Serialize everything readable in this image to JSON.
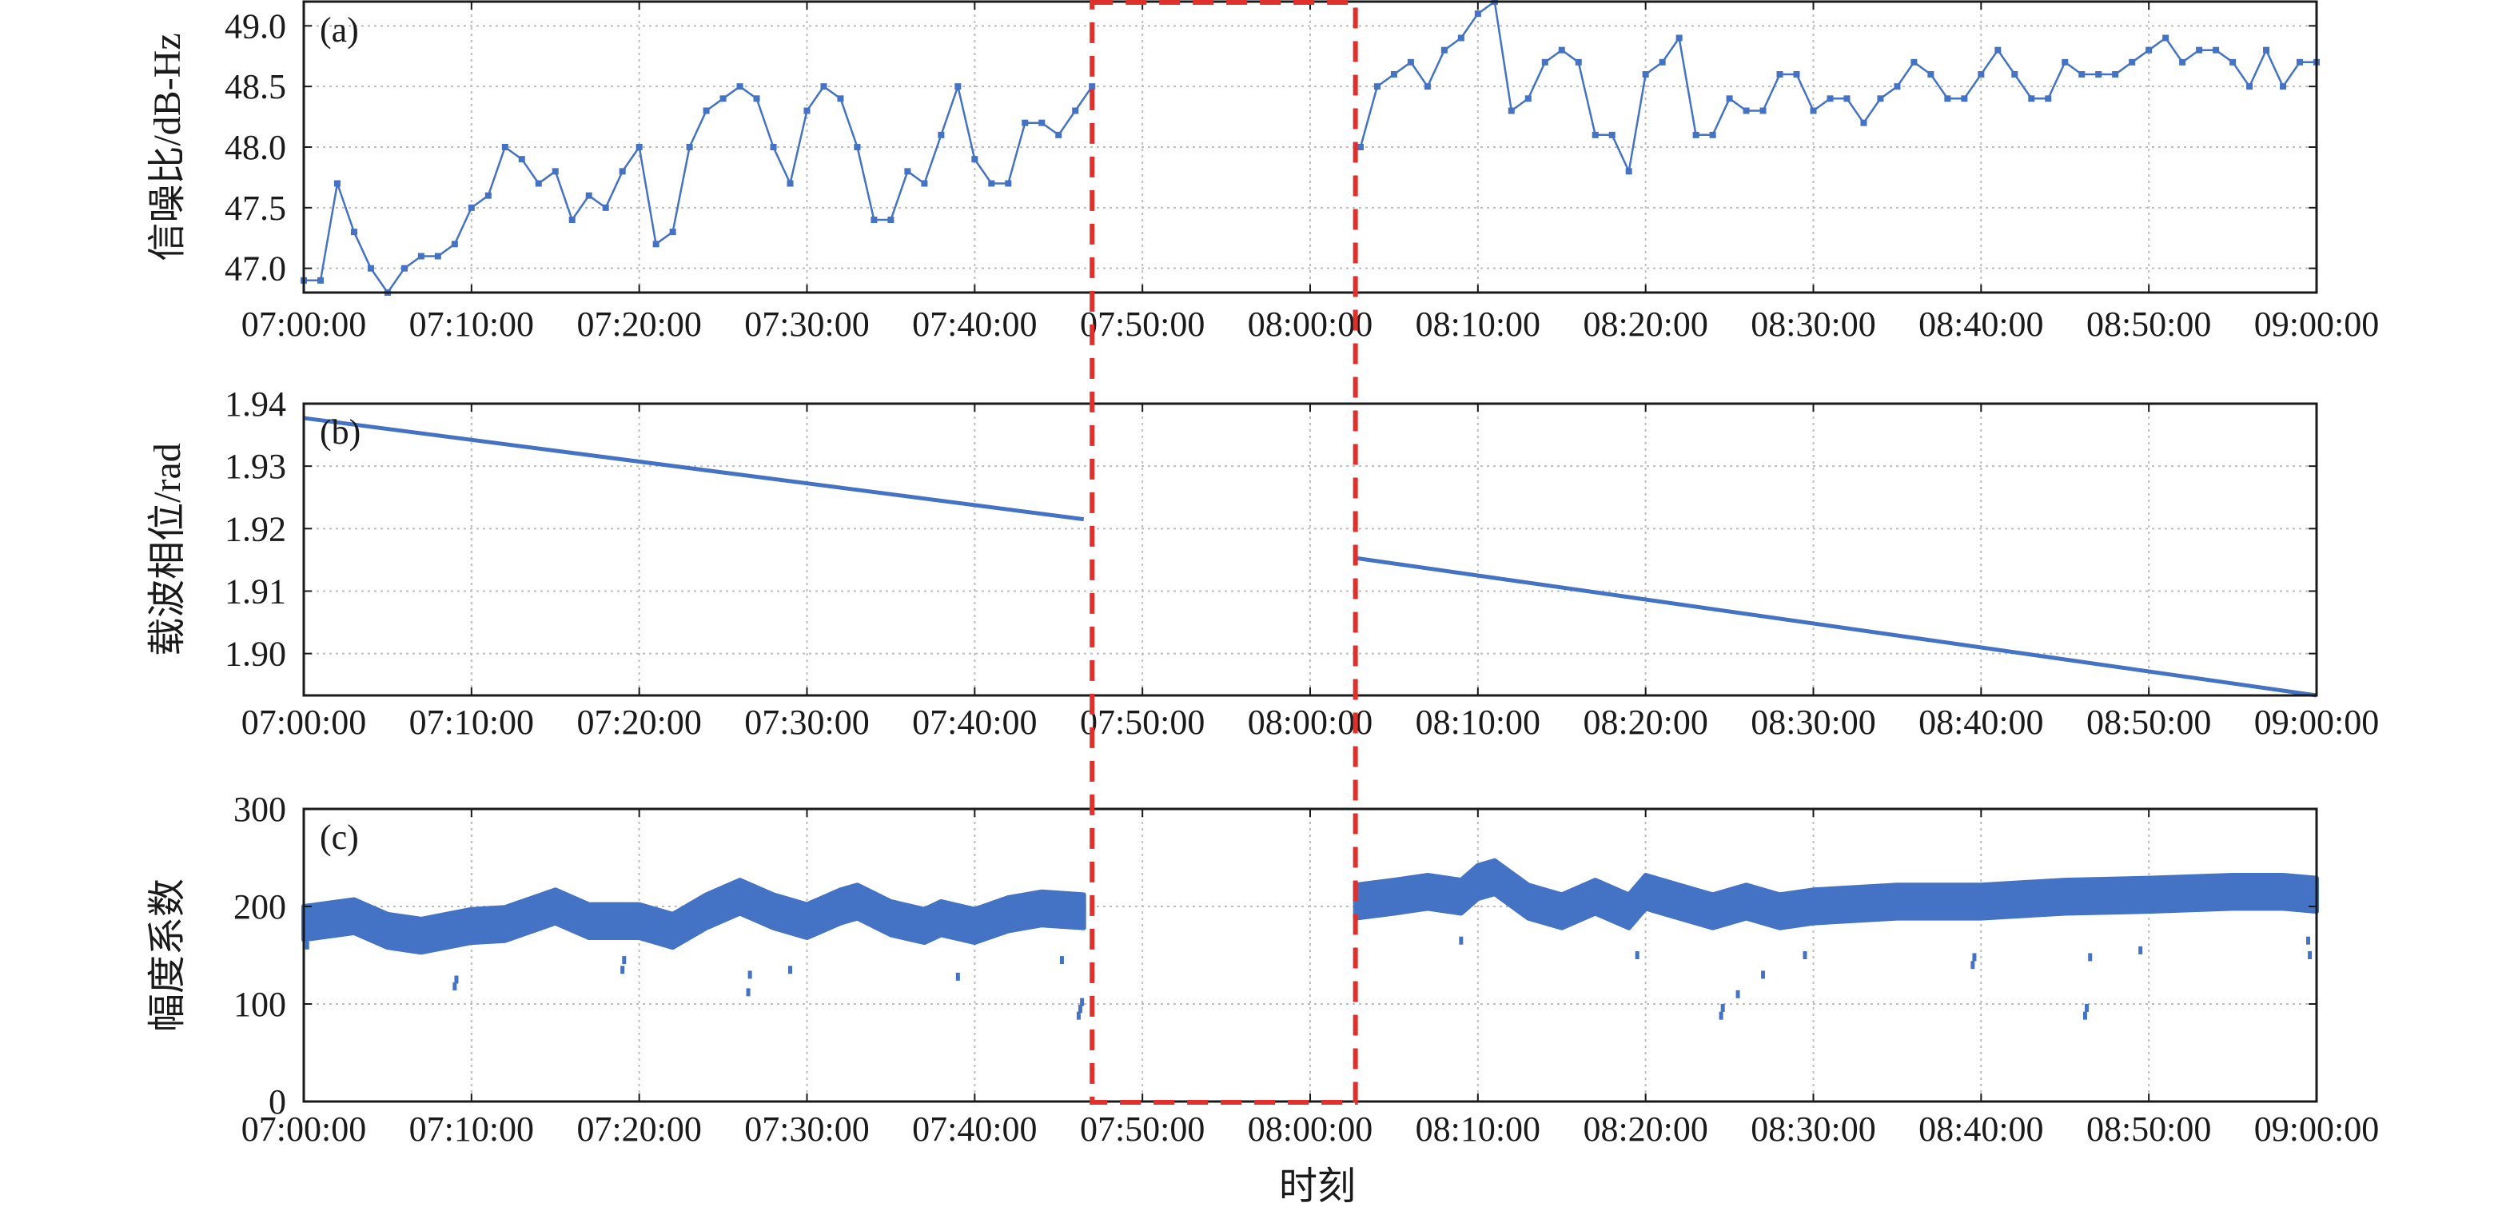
{
  "chart_data": [
    {
      "type": "line",
      "panel_label": "(a)",
      "ylabel": "信噪比/dB-Hz",
      "xlabel": "",
      "x_tick_labels": [
        "07:00:00",
        "07:10:00",
        "07:20:00",
        "07:30:00",
        "07:40:00",
        "07:50:00",
        "08:00:00",
        "08:10:00",
        "08:20:00",
        "08:30:00",
        "08:40:00",
        "08:50:00",
        "09:00:00"
      ],
      "xlim_minutes": [
        0,
        120
      ],
      "ylim": [
        46.8,
        49.2
      ],
      "y_ticks": [
        "47.0",
        "47.5",
        "48.0",
        "48.5",
        "49.0"
      ],
      "y_tick_values": [
        47.0,
        47.5,
        48.0,
        48.5,
        49.0
      ],
      "color": "#4472c4",
      "markers": true,
      "grid": true,
      "series": [
        {
          "x": [
            0,
            1,
            2,
            3,
            4,
            5,
            6,
            7,
            8,
            9,
            10,
            11,
            12,
            13,
            14,
            15,
            16,
            17,
            18,
            19,
            20,
            21,
            22,
            23,
            24,
            25,
            26,
            27,
            28,
            29,
            30,
            31,
            32,
            33,
            34,
            35,
            36,
            37,
            38,
            39,
            40,
            41,
            42,
            43,
            44,
            45,
            46,
            47
          ],
          "y": [
            46.9,
            46.9,
            47.7,
            47.3,
            47.0,
            46.8,
            47.0,
            47.1,
            47.1,
            47.2,
            47.5,
            47.6,
            48.0,
            47.9,
            47.7,
            47.8,
            47.4,
            47.6,
            47.5,
            47.8,
            48.0,
            47.2,
            47.3,
            48.0,
            48.3,
            48.4,
            48.5,
            48.4,
            48.0,
            47.7,
            48.3,
            48.5,
            48.4,
            48.0,
            47.4,
            47.4,
            47.8,
            47.7,
            48.1,
            48.5,
            47.9,
            47.7,
            47.7,
            48.2,
            48.2,
            48.1,
            48.3,
            48.5
          ]
        },
        {
          "x": [
            63,
            64,
            65,
            66,
            67,
            68,
            69,
            70,
            71,
            72,
            73,
            74,
            75,
            76,
            77,
            78,
            79,
            80,
            81,
            82,
            83,
            84,
            85,
            86,
            87,
            88,
            89,
            90,
            91,
            92,
            93,
            94,
            95,
            96,
            97,
            98,
            99,
            100,
            101,
            102,
            103,
            104,
            105,
            106,
            107,
            108,
            109,
            110,
            111,
            112,
            113,
            114,
            115,
            116,
            117,
            118,
            119,
            120
          ],
          "y": [
            48.0,
            48.5,
            48.6,
            48.7,
            48.5,
            48.8,
            48.9,
            49.1,
            49.2,
            48.3,
            48.4,
            48.7,
            48.8,
            48.7,
            48.1,
            48.1,
            47.8,
            48.6,
            48.7,
            48.9,
            48.1,
            48.1,
            48.4,
            48.3,
            48.3,
            48.6,
            48.6,
            48.3,
            48.4,
            48.4,
            48.2,
            48.4,
            48.5,
            48.7,
            48.6,
            48.4,
            48.4,
            48.6,
            48.8,
            48.6,
            48.4,
            48.4,
            48.7,
            48.6,
            48.6,
            48.6,
            48.7,
            48.8,
            48.9,
            48.7,
            48.8,
            48.8,
            48.7,
            48.5,
            48.8,
            48.5,
            48.7,
            48.7
          ]
        }
      ]
    },
    {
      "type": "line",
      "panel_label": "(b)",
      "ylabel": "载波相位/rad",
      "xlabel": "",
      "x_tick_labels": [
        "07:00:00",
        "07:10:00",
        "07:20:00",
        "07:30:00",
        "07:40:00",
        "07:50:00",
        "08:00:00",
        "08:10:00",
        "08:20:00",
        "08:30:00",
        "08:40:00",
        "08:50:00",
        "09:00:00"
      ],
      "xlim_minutes": [
        0,
        120
      ],
      "ylim": [
        1.8933,
        1.94
      ],
      "y_ticks": [
        "1.90",
        "1.91",
        "1.92",
        "1.93",
        "1.94"
      ],
      "y_tick_values": [
        1.9,
        1.91,
        1.92,
        1.93,
        1.94
      ],
      "color": "#4472c4",
      "grid": true,
      "series": [
        {
          "x": [
            0,
            46.5
          ],
          "y": [
            1.9377,
            1.9215
          ]
        },
        {
          "x": [
            62.7,
            120
          ],
          "y": [
            1.9153,
            1.8933
          ]
        }
      ]
    },
    {
      "type": "scatter",
      "panel_label": "(c)",
      "ylabel": "幅度系数",
      "xlabel": "时刻",
      "x_tick_labels": [
        "07:00:00",
        "07:10:00",
        "07:20:00",
        "07:30:00",
        "07:40:00",
        "07:50:00",
        "08:00:00",
        "08:10:00",
        "08:20:00",
        "08:30:00",
        "08:40:00",
        "08:50:00",
        "09:00:00"
      ],
      "xlim_minutes": [
        0,
        120
      ],
      "ylim": [
        0,
        300
      ],
      "y_ticks": [
        "0",
        "100",
        "200",
        "300"
      ],
      "y_tick_values": [
        0,
        100,
        200,
        300
      ],
      "color": "#4472c4",
      "grid": true,
      "band_series": [
        {
          "x": [
            0,
            3,
            5,
            7,
            10,
            12,
            15,
            17,
            19,
            20,
            22,
            24,
            26,
            28,
            30,
            32,
            33,
            35,
            37,
            38,
            40,
            42,
            44,
            46.5
          ],
          "y": [
            183,
            190,
            175,
            170,
            180,
            182,
            200,
            185,
            185,
            185,
            175,
            195,
            210,
            195,
            185,
            200,
            205,
            188,
            180,
            188,
            180,
            192,
            198,
            195
          ]
        },
        {
          "x": [
            62.7,
            65,
            67,
            69,
            70,
            71,
            73,
            75,
            77,
            79,
            80,
            82,
            84,
            86,
            88,
            90,
            95,
            100,
            105,
            110,
            115,
            118,
            120
          ],
          "y": [
            205,
            210,
            215,
            210,
            225,
            230,
            205,
            195,
            210,
            195,
            215,
            205,
            195,
            205,
            195,
            200,
            205,
            205,
            210,
            212,
            215,
            215,
            212
          ]
        }
      ],
      "outliers": [
        {
          "x": 0.2,
          "y": 160
        },
        {
          "x": 9,
          "y": 118
        },
        {
          "x": 9.1,
          "y": 125
        },
        {
          "x": 19,
          "y": 135
        },
        {
          "x": 19.1,
          "y": 145
        },
        {
          "x": 26.5,
          "y": 112
        },
        {
          "x": 26.6,
          "y": 130
        },
        {
          "x": 29,
          "y": 135
        },
        {
          "x": 39,
          "y": 128
        },
        {
          "x": 45.2,
          "y": 145
        },
        {
          "x": 46.2,
          "y": 88
        },
        {
          "x": 46.3,
          "y": 95
        },
        {
          "x": 46.4,
          "y": 102
        },
        {
          "x": 69,
          "y": 165
        },
        {
          "x": 79.5,
          "y": 150
        },
        {
          "x": 84.5,
          "y": 88
        },
        {
          "x": 84.6,
          "y": 96
        },
        {
          "x": 85.5,
          "y": 110
        },
        {
          "x": 87,
          "y": 130
        },
        {
          "x": 89.5,
          "y": 150
        },
        {
          "x": 99.5,
          "y": 140
        },
        {
          "x": 99.6,
          "y": 148
        },
        {
          "x": 106.2,
          "y": 88
        },
        {
          "x": 106.3,
          "y": 96
        },
        {
          "x": 106.5,
          "y": 148
        },
        {
          "x": 109.5,
          "y": 155
        },
        {
          "x": 119.5,
          "y": 165
        },
        {
          "x": 119.6,
          "y": 150
        }
      ]
    }
  ],
  "highlight": {
    "x_start_minutes": 47,
    "x_end_minutes": 62.7,
    "color": "#e0302b"
  }
}
